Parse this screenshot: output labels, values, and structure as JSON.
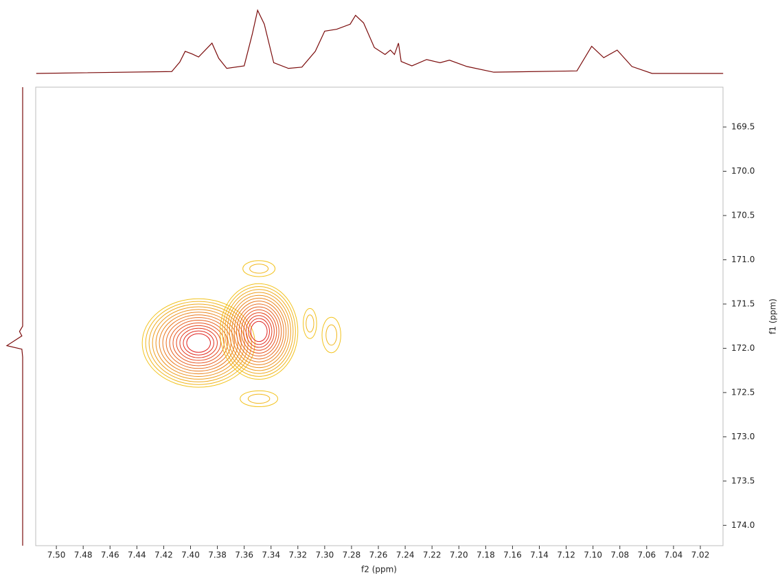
{
  "chart_data": {
    "type": "contour",
    "xlabel": "f2 (ppm)",
    "ylabel": "f1 (ppm)",
    "xlim": [
      7.5154,
      7.0031
    ],
    "ylim": [
      169.05,
      174.23
    ],
    "xticks": [
      {
        "value": 7.5,
        "label": "7.50"
      },
      7.48,
      7.46,
      7.44,
      7.42,
      {
        "value": 7.4,
        "label": "7.40"
      },
      7.38,
      7.36,
      7.34,
      7.32,
      {
        "value": 7.3,
        "label": "7.30"
      },
      7.28,
      7.26,
      7.24,
      7.22,
      {
        "value": 7.2,
        "label": "7.20"
      },
      7.18,
      7.16,
      7.14,
      7.12,
      {
        "value": 7.1,
        "label": "7.10"
      },
      7.08,
      7.06,
      7.04,
      7.02
    ],
    "yticks": [
      169.5,
      {
        "value": 170,
        "label": "170.0"
      },
      170.5,
      {
        "value": 171,
        "label": "171.0"
      },
      171.5,
      {
        "value": 172,
        "label": "172.0"
      },
      172.5,
      {
        "value": 173,
        "label": "173.0"
      },
      173.5,
      {
        "value": 174,
        "label": "174.0"
      }
    ],
    "colors": [
      "#f2c21b",
      "#e0201e"
    ],
    "projection_color": "#7a0a0a",
    "peaks": [
      {
        "x": 7.394,
        "y": 171.94,
        "rx": 0.042,
        "ry": 0.5,
        "levels": 14
      },
      {
        "x": 7.349,
        "y": 171.81,
        "rx": 0.029,
        "ry": 0.54,
        "levels": 14
      },
      {
        "x": 7.349,
        "y": 171.1,
        "rx": 0.012,
        "ry": 0.09,
        "levels": 2
      },
      {
        "x": 7.349,
        "y": 172.57,
        "rx": 0.014,
        "ry": 0.09,
        "levels": 2
      },
      {
        "x": 7.311,
        "y": 171.72,
        "rx": 0.005,
        "ry": 0.17,
        "levels": 2
      },
      {
        "x": 7.295,
        "y": 171.85,
        "rx": 0.007,
        "ry": 0.2,
        "levels": 2
      }
    ],
    "f2_projection": {
      "x": [
        7.515,
        7.414,
        7.408,
        7.404,
        7.399,
        7.394,
        7.389,
        7.384,
        7.379,
        7.373,
        7.36,
        7.354,
        7.35,
        7.345,
        7.338,
        7.327,
        7.317,
        7.307,
        7.3,
        7.291,
        7.281,
        7.277,
        7.271,
        7.263,
        7.255,
        7.251,
        7.248,
        7.245,
        7.243,
        7.235,
        7.224,
        7.214,
        7.207,
        7.194,
        7.174,
        7.112,
        7.101,
        7.092,
        7.082,
        7.071,
        7.056,
        7.003
      ],
      "values": [
        0,
        3,
        18,
        35,
        31,
        26,
        37,
        48,
        24,
        8,
        12,
        62,
        100,
        78,
        17,
        8,
        10,
        35,
        67,
        70,
        78,
        92,
        80,
        41,
        30,
        37,
        30,
        48,
        19,
        12,
        22,
        17,
        21,
        11,
        2,
        4,
        43,
        25,
        37,
        11,
        0,
        0
      ]
    },
    "f1_projection": {
      "y": [
        169.05,
        171.75,
        171.81,
        171.86,
        171.97,
        172.01,
        172.1,
        174.23
      ],
      "values": [
        0,
        0,
        20,
        5,
        100,
        5,
        0,
        0
      ]
    }
  }
}
